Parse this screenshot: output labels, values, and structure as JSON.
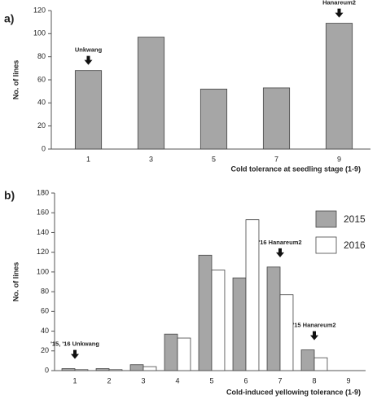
{
  "chart_data": [
    {
      "type": "bar",
      "label": "a)",
      "x_label": "Cold tolerance at seedling stage (1-9)",
      "y_label": "No. of lines",
      "categories": [
        "1",
        "3",
        "5",
        "7",
        "9"
      ],
      "series": [
        {
          "color": "#a6a6a6",
          "values": [
            68,
            97,
            52,
            53,
            109
          ]
        }
      ],
      "ylim": [
        0,
        120
      ],
      "yticks": [
        0,
        20,
        40,
        60,
        80,
        100,
        120
      ],
      "annotations": [
        {
          "text": "Unkwang",
          "x": "1"
        },
        {
          "text": "Hanareum2",
          "x": "9"
        }
      ]
    },
    {
      "type": "bar",
      "label": "b)",
      "x_label": "Cold-induced yellowing tolerance (1-9)",
      "y_label": "No. of lines",
      "categories": [
        "1",
        "2",
        "3",
        "4",
        "5",
        "6",
        "7",
        "8",
        "9"
      ],
      "series": [
        {
          "name": "2015",
          "color": "#a6a6a6",
          "values": [
            2,
            2,
            6,
            37,
            117,
            94,
            105,
            21,
            0
          ]
        },
        {
          "name": "2016",
          "color": "#ffffff",
          "values": [
            1,
            1,
            4,
            33,
            102,
            153,
            77,
            13,
            0
          ]
        }
      ],
      "ylim": [
        0,
        180
      ],
      "yticks": [
        0,
        20,
        40,
        60,
        80,
        100,
        120,
        140,
        160,
        180
      ],
      "legend": "top-right",
      "annotations": [
        {
          "text": "'15, '16 Unkwang",
          "x": "1"
        },
        {
          "text": "'16 Hanareum2",
          "x": "7"
        },
        {
          "text": "'15 Hanareum2",
          "x": "8"
        }
      ]
    }
  ]
}
